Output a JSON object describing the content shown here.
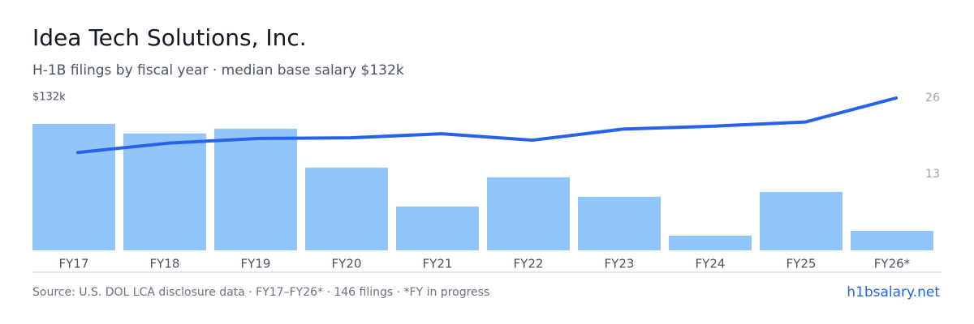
{
  "chart_data": {
    "type": "bar_line",
    "title": "Idea Tech Solutions, Inc.",
    "subtitle": "H-1B filings by fiscal year · median base salary $132k",
    "y_axis_label": "$132k",
    "categories": [
      "FY17",
      "FY18",
      "FY19",
      "FY20",
      "FY21",
      "FY22",
      "FY23",
      "FY24",
      "FY25",
      "FY26*"
    ],
    "series": [
      {
        "type": "bar",
        "color": "#93c5fd",
        "values": [
          26,
          24,
          25,
          17,
          9,
          15,
          11,
          3,
          12,
          4
        ]
      },
      {
        "type": "line",
        "axis": "y2",
        "color": "#2563eb",
        "values": [
          16.7,
          18.3,
          19.1,
          19.2,
          19.9,
          18.8,
          20.7,
          21.2,
          21.9,
          26
        ]
      }
    ],
    "ylim": [
      0,
      31.3
    ],
    "y2lim": [
      0,
      26
    ],
    "y2ticks": [
      13,
      26
    ],
    "source": "Source: U.S. DOL LCA disclosure data · FY17–FY26* · 146 filings · *FY in progress",
    "brand": "h1bsalary.net"
  }
}
